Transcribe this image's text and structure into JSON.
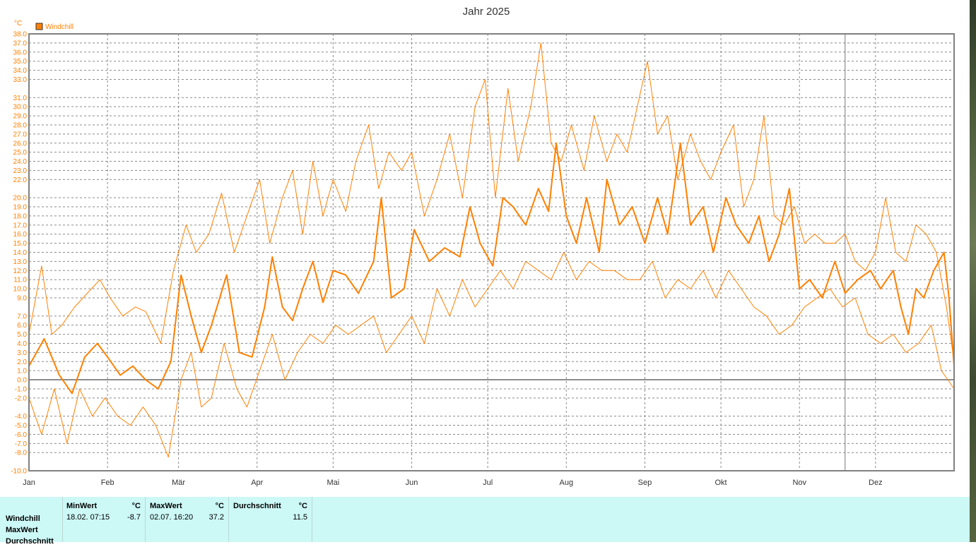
{
  "chart_data": {
    "type": "line",
    "title": "Jahr 2025",
    "ylabel": "°C",
    "xlabel": "",
    "ylim": [
      -10,
      38
    ],
    "xlim_days": [
      0,
      365
    ],
    "grid": true,
    "legend_position": "top-left",
    "y_ticks": [
      38.0,
      37.0,
      36.0,
      35.0,
      34.0,
      33.0,
      31.0,
      30.0,
      29.0,
      28.0,
      27.0,
      26.0,
      25.0,
      24.0,
      23.0,
      22.0,
      20.0,
      19.0,
      18.0,
      17.0,
      16.0,
      15.0,
      14.0,
      13.0,
      12.0,
      11.0,
      10.0,
      9.0,
      7.0,
      6.0,
      5.0,
      4.0,
      3.0,
      2.0,
      1.0,
      0.0,
      -1.0,
      -2.0,
      -4.0,
      -5.0,
      -6.0,
      -7.0,
      -8.0,
      -10.0
    ],
    "months": [
      "Jan",
      "Feb",
      "Mär",
      "Apr",
      "Mai",
      "Jun",
      "Jul",
      "Aug",
      "Sep",
      "Okt",
      "Nov",
      "Dez"
    ],
    "month_start_days": [
      0,
      31,
      59,
      90,
      120,
      151,
      181,
      212,
      243,
      273,
      304,
      334
    ],
    "current_day": 322,
    "series": [
      {
        "name": "Windchill",
        "color": "#ff8000",
        "points": [
          [
            0,
            1.5
          ],
          [
            6,
            4.5
          ],
          [
            12,
            0.5
          ],
          [
            17,
            -1.5
          ],
          [
            22,
            2.5
          ],
          [
            27,
            4
          ],
          [
            31,
            2.5
          ],
          [
            36,
            0.5
          ],
          [
            41,
            1.5
          ],
          [
            46,
            0
          ],
          [
            51,
            -1
          ],
          [
            56,
            2
          ],
          [
            60,
            11.5
          ],
          [
            64,
            7
          ],
          [
            68,
            3
          ],
          [
            72,
            6
          ],
          [
            78,
            11.5
          ],
          [
            83,
            3
          ],
          [
            88,
            2.5
          ],
          [
            93,
            8
          ],
          [
            96,
            13.5
          ],
          [
            100,
            8
          ],
          [
            104,
            6.5
          ],
          [
            108,
            10
          ],
          [
            112,
            13
          ],
          [
            116,
            8.5
          ],
          [
            120,
            12
          ],
          [
            125,
            11.5
          ],
          [
            130,
            9.5
          ],
          [
            136,
            13
          ],
          [
            139,
            20
          ],
          [
            143,
            9
          ],
          [
            148,
            10
          ],
          [
            152,
            16.5
          ],
          [
            158,
            13
          ],
          [
            164,
            14.5
          ],
          [
            170,
            13.5
          ],
          [
            174,
            19
          ],
          [
            178,
            15
          ],
          [
            183,
            12.5
          ],
          [
            187,
            20
          ],
          [
            191,
            19
          ],
          [
            196,
            17
          ],
          [
            201,
            21
          ],
          [
            205,
            18.5
          ],
          [
            208,
            26
          ],
          [
            212,
            18
          ],
          [
            216,
            15
          ],
          [
            220,
            20
          ],
          [
            225,
            14
          ],
          [
            228,
            22
          ],
          [
            233,
            17
          ],
          [
            238,
            19
          ],
          [
            243,
            15
          ],
          [
            248,
            20
          ],
          [
            252,
            16
          ],
          [
            257,
            26
          ],
          [
            261,
            17
          ],
          [
            266,
            19
          ],
          [
            270,
            14
          ],
          [
            275,
            20
          ],
          [
            279,
            17
          ],
          [
            284,
            15
          ],
          [
            288,
            18
          ],
          [
            292,
            13
          ],
          [
            296,
            16
          ],
          [
            300,
            21
          ],
          [
            304,
            10
          ],
          [
            308,
            11
          ],
          [
            313,
            9
          ],
          [
            318,
            13
          ],
          [
            322,
            9.5
          ],
          [
            327,
            11
          ],
          [
            332,
            12
          ],
          [
            336,
            10
          ],
          [
            341,
            12
          ],
          [
            344,
            8
          ],
          [
            347,
            5
          ],
          [
            350,
            10
          ],
          [
            353,
            9
          ],
          [
            357,
            12
          ],
          [
            361,
            14
          ],
          [
            363,
            9
          ],
          [
            365,
            1.5
          ]
        ]
      },
      {
        "name": "MaxWert",
        "color": "#ff8000",
        "points": [
          [
            0,
            5
          ],
          [
            5,
            12.5
          ],
          [
            9,
            5
          ],
          [
            13,
            6
          ],
          [
            18,
            8
          ],
          [
            23,
            9.5
          ],
          [
            28,
            11
          ],
          [
            32,
            9
          ],
          [
            37,
            7
          ],
          [
            42,
            8
          ],
          [
            46,
            7.5
          ],
          [
            52,
            4
          ],
          [
            57,
            12
          ],
          [
            62,
            17
          ],
          [
            66,
            14
          ],
          [
            71,
            16
          ],
          [
            76,
            20.5
          ],
          [
            81,
            14
          ],
          [
            86,
            18
          ],
          [
            91,
            22
          ],
          [
            95,
            15
          ],
          [
            100,
            20
          ],
          [
            104,
            23
          ],
          [
            108,
            16
          ],
          [
            112,
            24
          ],
          [
            116,
            18
          ],
          [
            120,
            22
          ],
          [
            125,
            18.5
          ],
          [
            129,
            24
          ],
          [
            134,
            28
          ],
          [
            138,
            21
          ],
          [
            142,
            25
          ],
          [
            147,
            23
          ],
          [
            151,
            25
          ],
          [
            156,
            18
          ],
          [
            161,
            22
          ],
          [
            166,
            27
          ],
          [
            171,
            20
          ],
          [
            176,
            30
          ],
          [
            180,
            33
          ],
          [
            184,
            20
          ],
          [
            189,
            32
          ],
          [
            193,
            24
          ],
          [
            198,
            30
          ],
          [
            202,
            37
          ],
          [
            206,
            26
          ],
          [
            210,
            24
          ],
          [
            214,
            28
          ],
          [
            219,
            23
          ],
          [
            223,
            29
          ],
          [
            228,
            24
          ],
          [
            232,
            27
          ],
          [
            236,
            25
          ],
          [
            240,
            30
          ],
          [
            244,
            35
          ],
          [
            248,
            27
          ],
          [
            252,
            29
          ],
          [
            256,
            22
          ],
          [
            261,
            27
          ],
          [
            265,
            24
          ],
          [
            269,
            22
          ],
          [
            273,
            25
          ],
          [
            278,
            28
          ],
          [
            282,
            19
          ],
          [
            286,
            22
          ],
          [
            290,
            29
          ],
          [
            294,
            18
          ],
          [
            298,
            17
          ],
          [
            302,
            19
          ],
          [
            306,
            15
          ],
          [
            310,
            16
          ],
          [
            314,
            15
          ],
          [
            318,
            15
          ],
          [
            322,
            16
          ],
          [
            326,
            13
          ],
          [
            330,
            12
          ],
          [
            334,
            14
          ],
          [
            338,
            20
          ],
          [
            342,
            14
          ],
          [
            346,
            13
          ],
          [
            350,
            17
          ],
          [
            354,
            16
          ],
          [
            358,
            14
          ],
          [
            362,
            8
          ],
          [
            365,
            2
          ]
        ]
      },
      {
        "name": "MinWert",
        "color": "#ff8000",
        "points": [
          [
            0,
            -2
          ],
          [
            5,
            -6
          ],
          [
            10,
            -1
          ],
          [
            15,
            -7
          ],
          [
            20,
            -1
          ],
          [
            25,
            -4
          ],
          [
            30,
            -2
          ],
          [
            35,
            -4
          ],
          [
            40,
            -5
          ],
          [
            45,
            -3
          ],
          [
            50,
            -5
          ],
          [
            55,
            -8.5
          ],
          [
            60,
            0
          ],
          [
            64,
            3
          ],
          [
            68,
            -3
          ],
          [
            72,
            -2
          ],
          [
            77,
            4
          ],
          [
            82,
            -1
          ],
          [
            86,
            -3
          ],
          [
            91,
            1
          ],
          [
            96,
            5
          ],
          [
            101,
            0
          ],
          [
            106,
            3
          ],
          [
            111,
            5
          ],
          [
            116,
            4
          ],
          [
            121,
            6
          ],
          [
            126,
            5
          ],
          [
            131,
            6
          ],
          [
            136,
            7
          ],
          [
            141,
            3
          ],
          [
            146,
            5
          ],
          [
            151,
            7
          ],
          [
            156,
            4
          ],
          [
            161,
            10
          ],
          [
            166,
            7
          ],
          [
            171,
            11
          ],
          [
            176,
            8
          ],
          [
            181,
            10
          ],
          [
            186,
            12
          ],
          [
            191,
            10
          ],
          [
            196,
            13
          ],
          [
            201,
            12
          ],
          [
            206,
            11
          ],
          [
            211,
            14
          ],
          [
            216,
            11
          ],
          [
            221,
            13
          ],
          [
            226,
            12
          ],
          [
            231,
            12
          ],
          [
            236,
            11
          ],
          [
            241,
            11
          ],
          [
            246,
            13
          ],
          [
            251,
            9
          ],
          [
            256,
            11
          ],
          [
            261,
            10
          ],
          [
            266,
            12
          ],
          [
            271,
            9
          ],
          [
            276,
            12
          ],
          [
            281,
            10
          ],
          [
            286,
            8
          ],
          [
            291,
            7
          ],
          [
            296,
            5
          ],
          [
            301,
            6
          ],
          [
            306,
            8
          ],
          [
            311,
            9
          ],
          [
            316,
            10
          ],
          [
            321,
            8
          ],
          [
            326,
            9
          ],
          [
            331,
            5
          ],
          [
            336,
            4
          ],
          [
            341,
            5
          ],
          [
            346,
            3
          ],
          [
            351,
            4
          ],
          [
            356,
            6
          ],
          [
            360,
            1
          ],
          [
            365,
            -1
          ]
        ]
      }
    ],
    "legend": [
      {
        "label": "Windchill",
        "color": "#ff8000"
      }
    ]
  },
  "stats_table": {
    "row_labels": [
      "Windchill",
      "MaxWert",
      "Durchschnitt"
    ],
    "min": {
      "header": "MinWert",
      "unit": "°C",
      "time": "18.02.  07:15",
      "value": "-8.7"
    },
    "max": {
      "header": "MaxWert",
      "unit": "°C",
      "time": "02.07.  16:20",
      "value": "37.2"
    },
    "avg": {
      "header": "Durchschnitt",
      "unit": "°C",
      "value": "11.5"
    }
  }
}
